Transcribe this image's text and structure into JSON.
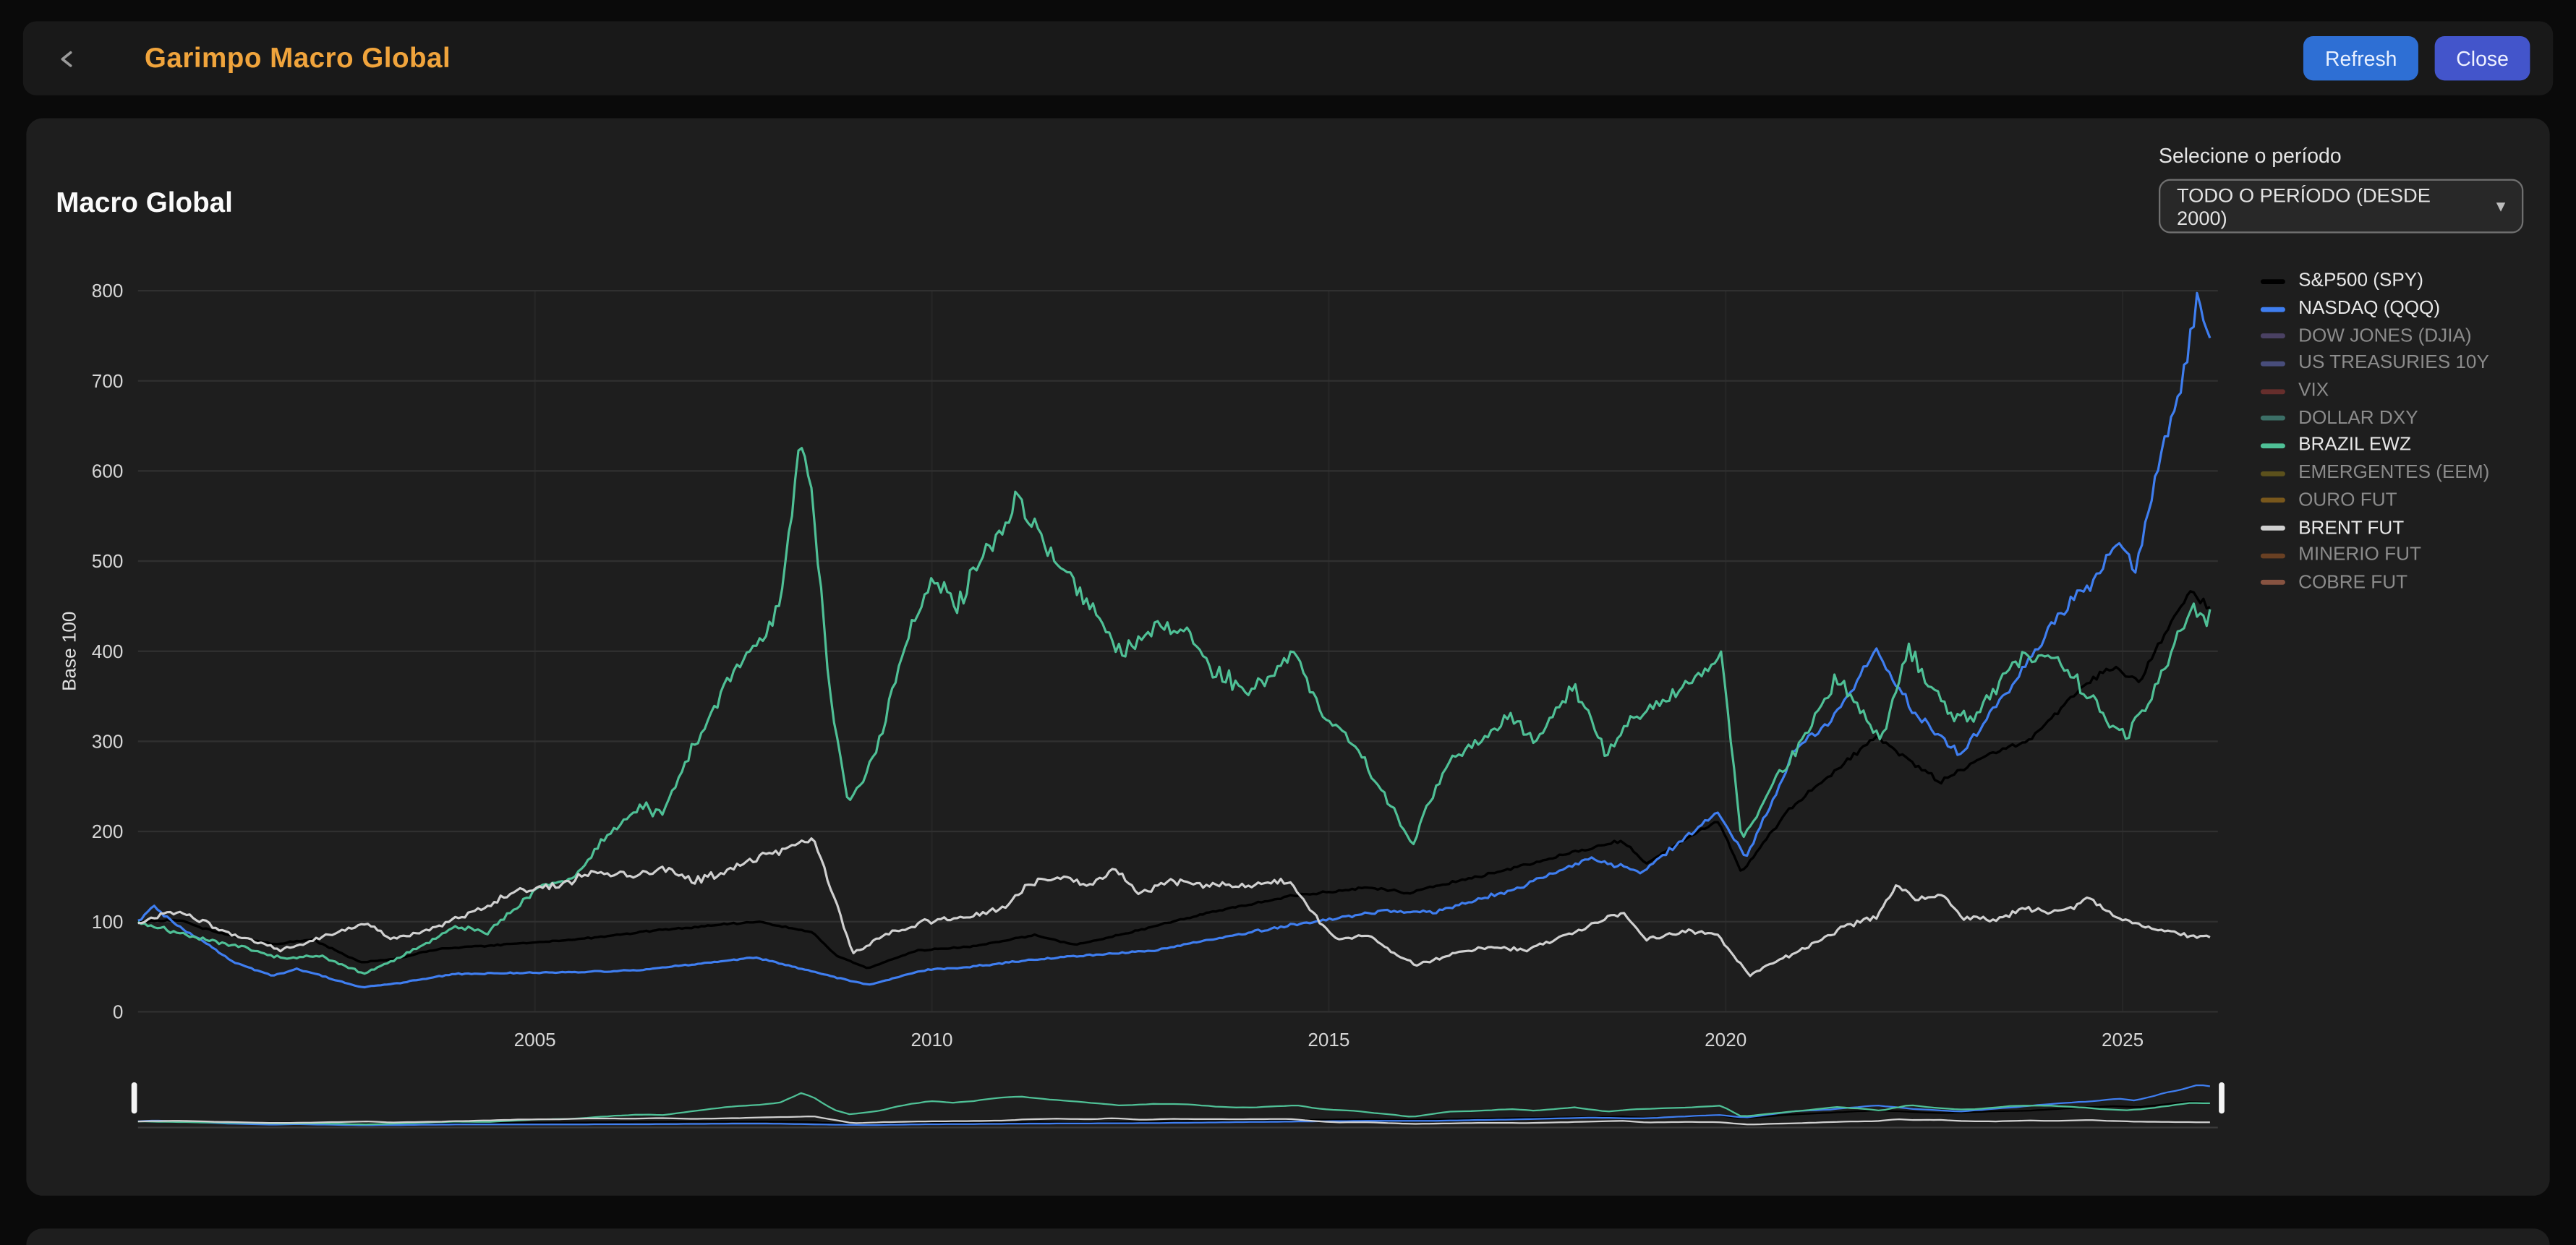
{
  "header": {
    "title": "Garimpo Macro Global",
    "refresh_label": "Refresh",
    "close_label": "Close",
    "back_icon": "chevron-left"
  },
  "panel": {
    "title": "Macro Global",
    "period_label": "Selecione o período",
    "period_value": "TODO O PERÍODO (DESDE 2000)",
    "chevron_icon": "chevron-down"
  },
  "colors": {
    "accent_title": "#f0a43c",
    "refresh_button": "#2e6fd4",
    "close_button": "#4355cb",
    "panel_bg": "#1e1e1e",
    "header_bg": "#191919",
    "page_bg": "#0a0a0a"
  },
  "chart_data": {
    "type": "line",
    "title": "Macro Global",
    "xlabel": "",
    "ylabel": "Base 100",
    "ylim": [
      0,
      800
    ],
    "yticks": [
      0,
      100,
      200,
      300,
      400,
      500,
      600,
      700,
      800
    ],
    "xlim": [
      2000,
      2026.2
    ],
    "xticks": [
      2005,
      2010,
      2015,
      2020,
      2025
    ],
    "grid": true,
    "legend_position": "right",
    "navigator": true,
    "series": [
      {
        "name": "S&P500 (SPY)",
        "color": "#000000",
        "active": true,
        "points": [
          [
            2000,
            100
          ],
          [
            2000.5,
            102
          ],
          [
            2001,
            88
          ],
          [
            2001.7,
            75
          ],
          [
            2002.2,
            80
          ],
          [
            2002.8,
            55
          ],
          [
            2003.2,
            58
          ],
          [
            2003.8,
            70
          ],
          [
            2004.5,
            74
          ],
          [
            2005.5,
            80
          ],
          [
            2006.5,
            90
          ],
          [
            2007.8,
            100
          ],
          [
            2008.5,
            88
          ],
          [
            2008.8,
            62
          ],
          [
            2009.2,
            48
          ],
          [
            2009.8,
            68
          ],
          [
            2010.5,
            72
          ],
          [
            2011.3,
            85
          ],
          [
            2011.8,
            74
          ],
          [
            2012.5,
            88
          ],
          [
            2013.5,
            110
          ],
          [
            2014.5,
            128
          ],
          [
            2015.5,
            138
          ],
          [
            2016,
            132
          ],
          [
            2016.8,
            148
          ],
          [
            2017.8,
            170
          ],
          [
            2018.7,
            190
          ],
          [
            2019,
            165
          ],
          [
            2019.9,
            212
          ],
          [
            2020.2,
            155
          ],
          [
            2020.8,
            225
          ],
          [
            2021.9,
            305
          ],
          [
            2022.7,
            255
          ],
          [
            2023.3,
            285
          ],
          [
            2023.8,
            300
          ],
          [
            2024.5,
            360
          ],
          [
            2024.9,
            385
          ],
          [
            2025.2,
            365
          ],
          [
            2025.6,
            430
          ],
          [
            2025.85,
            465
          ],
          [
            2026.1,
            450
          ]
        ]
      },
      {
        "name": "NASDAQ (QQQ)",
        "color": "#3f7ef0",
        "active": true,
        "points": [
          [
            2000,
            100
          ],
          [
            2000.2,
            117
          ],
          [
            2000.5,
            95
          ],
          [
            2000.8,
            80
          ],
          [
            2001.2,
            55
          ],
          [
            2001.7,
            40
          ],
          [
            2002,
            48
          ],
          [
            2002.8,
            27
          ],
          [
            2003.3,
            32
          ],
          [
            2004,
            42
          ],
          [
            2004.8,
            43
          ],
          [
            2005.5,
            44
          ],
          [
            2006.3,
            46
          ],
          [
            2007.8,
            60
          ],
          [
            2008.8,
            38
          ],
          [
            2009.2,
            30
          ],
          [
            2009.9,
            46
          ],
          [
            2010.5,
            50
          ],
          [
            2011.3,
            58
          ],
          [
            2012,
            63
          ],
          [
            2012.8,
            68
          ],
          [
            2013.8,
            85
          ],
          [
            2014.8,
            100
          ],
          [
            2015.7,
            112
          ],
          [
            2016.3,
            110
          ],
          [
            2017.3,
            135
          ],
          [
            2018.3,
            170
          ],
          [
            2018.95,
            155
          ],
          [
            2019.9,
            222
          ],
          [
            2020.25,
            170
          ],
          [
            2020.9,
            295
          ],
          [
            2021.3,
            320
          ],
          [
            2021.9,
            400
          ],
          [
            2022.4,
            330
          ],
          [
            2022.95,
            285
          ],
          [
            2023.6,
            360
          ],
          [
            2024.2,
            440
          ],
          [
            2024.6,
            475
          ],
          [
            2024.95,
            525
          ],
          [
            2025.15,
            490
          ],
          [
            2025.35,
            560
          ],
          [
            2025.55,
            640
          ],
          [
            2025.75,
            700
          ],
          [
            2025.95,
            790
          ],
          [
            2026.1,
            755
          ]
        ]
      },
      {
        "name": "DOW JONES (DJIA)",
        "color": "#6f5f9c",
        "active": false
      },
      {
        "name": "US TREASURIES 10Y",
        "color": "#6b74c9",
        "active": false
      },
      {
        "name": "VIX",
        "color": "#a33c38",
        "active": false
      },
      {
        "name": "DOLLAR DXY",
        "color": "#55b2a4",
        "active": false
      },
      {
        "name": "BRAZIL EWZ",
        "color": "#4fc096",
        "active": true,
        "points": [
          [
            2000,
            100
          ],
          [
            2000.6,
            85
          ],
          [
            2001.3,
            72
          ],
          [
            2001.8,
            60
          ],
          [
            2002.3,
            62
          ],
          [
            2002.85,
            42
          ],
          [
            2003.4,
            65
          ],
          [
            2004,
            95
          ],
          [
            2004.4,
            88
          ],
          [
            2005,
            135
          ],
          [
            2005.5,
            150
          ],
          [
            2006,
            205
          ],
          [
            2006.4,
            230
          ],
          [
            2006.6,
            215
          ],
          [
            2007,
            295
          ],
          [
            2007.5,
            380
          ],
          [
            2007.9,
            420
          ],
          [
            2008.1,
            460
          ],
          [
            2008.35,
            630
          ],
          [
            2008.5,
            560
          ],
          [
            2008.75,
            330
          ],
          [
            2008.95,
            230
          ],
          [
            2009.3,
            290
          ],
          [
            2009.7,
            420
          ],
          [
            2010,
            480
          ],
          [
            2010.3,
            450
          ],
          [
            2010.8,
            530
          ],
          [
            2011.1,
            565
          ],
          [
            2011.5,
            510
          ],
          [
            2012,
            450
          ],
          [
            2012.4,
            395
          ],
          [
            2012.8,
            430
          ],
          [
            2013.2,
            420
          ],
          [
            2013.6,
            375
          ],
          [
            2014,
            355
          ],
          [
            2014.6,
            400
          ],
          [
            2014.9,
            330
          ],
          [
            2015.3,
            300
          ],
          [
            2015.8,
            225
          ],
          [
            2016.05,
            185
          ],
          [
            2016.5,
            280
          ],
          [
            2016.9,
            300
          ],
          [
            2017.3,
            330
          ],
          [
            2017.6,
            300
          ],
          [
            2018.1,
            360
          ],
          [
            2018.5,
            285
          ],
          [
            2018.9,
            330
          ],
          [
            2019.5,
            360
          ],
          [
            2019.95,
            395
          ],
          [
            2020.2,
            190
          ],
          [
            2020.6,
            250
          ],
          [
            2020.95,
            300
          ],
          [
            2021.4,
            370
          ],
          [
            2021.75,
            330
          ],
          [
            2021.95,
            300
          ],
          [
            2022.3,
            405
          ],
          [
            2022.6,
            360
          ],
          [
            2022.85,
            330
          ],
          [
            2023.1,
            325
          ],
          [
            2023.6,
            385
          ],
          [
            2023.95,
            400
          ],
          [
            2024.4,
            370
          ],
          [
            2024.75,
            330
          ],
          [
            2025.05,
            305
          ],
          [
            2025.35,
            345
          ],
          [
            2025.6,
            395
          ],
          [
            2025.85,
            445
          ],
          [
            2026.1,
            440
          ]
        ]
      },
      {
        "name": "EMERGENTES (EEM)",
        "color": "#8f7c1c",
        "active": false
      },
      {
        "name": "OURO FUT",
        "color": "#c2871c",
        "active": false
      },
      {
        "name": "BRENT FUT",
        "color": "#d0d0d0",
        "active": true,
        "points": [
          [
            2000,
            100
          ],
          [
            2000.5,
            112
          ],
          [
            2001,
            92
          ],
          [
            2001.8,
            68
          ],
          [
            2002.4,
            85
          ],
          [
            2002.9,
            98
          ],
          [
            2003.2,
            80
          ],
          [
            2003.8,
            95
          ],
          [
            2004.4,
            118
          ],
          [
            2004.8,
            135
          ],
          [
            2005.3,
            140
          ],
          [
            2005.7,
            155
          ],
          [
            2006.2,
            150
          ],
          [
            2006.6,
            160
          ],
          [
            2007,
            145
          ],
          [
            2007.5,
            160
          ],
          [
            2007.9,
            175
          ],
          [
            2008.3,
            185
          ],
          [
            2008.5,
            195
          ],
          [
            2008.8,
            120
          ],
          [
            2009,
            65
          ],
          [
            2009.4,
            85
          ],
          [
            2009.9,
            100
          ],
          [
            2010.4,
            105
          ],
          [
            2010.9,
            115
          ],
          [
            2011.2,
            140
          ],
          [
            2011.6,
            150
          ],
          [
            2012,
            140
          ],
          [
            2012.3,
            160
          ],
          [
            2012.6,
            130
          ],
          [
            2013,
            145
          ],
          [
            2013.6,
            140
          ],
          [
            2014,
            140
          ],
          [
            2014.5,
            145
          ],
          [
            2014.8,
            110
          ],
          [
            2015.1,
            80
          ],
          [
            2015.5,
            85
          ],
          [
            2015.9,
            60
          ],
          [
            2016.1,
            52
          ],
          [
            2016.6,
            65
          ],
          [
            2017,
            72
          ],
          [
            2017.5,
            68
          ],
          [
            2018,
            85
          ],
          [
            2018.7,
            110
          ],
          [
            2019,
            80
          ],
          [
            2019.5,
            90
          ],
          [
            2019.9,
            85
          ],
          [
            2020.3,
            40
          ],
          [
            2020.6,
            55
          ],
          [
            2021,
            70
          ],
          [
            2021.5,
            95
          ],
          [
            2021.9,
            105
          ],
          [
            2022.15,
            140
          ],
          [
            2022.4,
            125
          ],
          [
            2022.7,
            130
          ],
          [
            2023,
            105
          ],
          [
            2023.4,
            100
          ],
          [
            2023.8,
            115
          ],
          [
            2024.2,
            110
          ],
          [
            2024.6,
            125
          ],
          [
            2024.9,
            105
          ],
          [
            2025.2,
            95
          ],
          [
            2025.5,
            90
          ],
          [
            2025.8,
            85
          ],
          [
            2026.1,
            82
          ]
        ]
      },
      {
        "name": "MINERIO FUT",
        "color": "#a85c28",
        "active": false
      },
      {
        "name": "COBRE FUT",
        "color": "#df7f5e",
        "active": false
      }
    ]
  }
}
